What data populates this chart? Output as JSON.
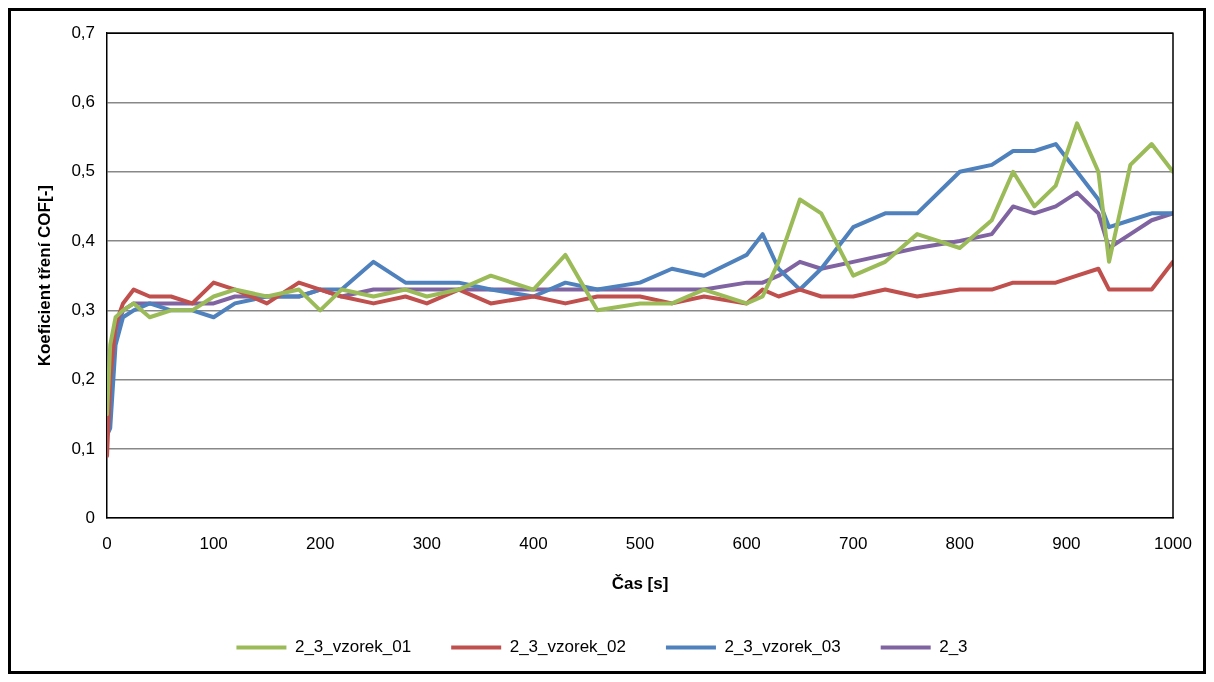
{
  "chart_data": {
    "type": "line",
    "xlabel": "Čas [s]",
    "ylabel": "Koeficient tření COF[-]",
    "x": [
      0,
      3,
      8,
      15,
      25,
      40,
      60,
      80,
      100,
      120,
      150,
      180,
      200,
      220,
      250,
      280,
      300,
      330,
      360,
      400,
      430,
      460,
      500,
      530,
      560,
      600,
      615,
      630,
      650,
      670,
      700,
      730,
      760,
      800,
      830,
      850,
      870,
      890,
      910,
      930,
      940,
      960,
      980,
      1000
    ],
    "series": [
      {
        "name": "2_3_vzorek_01",
        "color": "#9bbb59",
        "values": [
          0.15,
          0.25,
          0.29,
          0.3,
          0.31,
          0.29,
          0.3,
          0.3,
          0.32,
          0.33,
          0.32,
          0.33,
          0.3,
          0.33,
          0.32,
          0.33,
          0.32,
          0.33,
          0.35,
          0.33,
          0.38,
          0.3,
          0.31,
          0.31,
          0.33,
          0.31,
          0.32,
          0.37,
          0.46,
          0.44,
          0.35,
          0.37,
          0.41,
          0.39,
          0.43,
          0.5,
          0.45,
          0.48,
          0.57,
          0.5,
          0.37,
          0.51,
          0.54,
          0.5
        ]
      },
      {
        "name": "2_3_vzorek_02",
        "color": "#c0504d",
        "values": [
          0.09,
          0.2,
          0.28,
          0.31,
          0.33,
          0.32,
          0.32,
          0.31,
          0.34,
          0.33,
          0.31,
          0.34,
          0.33,
          0.32,
          0.31,
          0.32,
          0.31,
          0.33,
          0.31,
          0.32,
          0.31,
          0.32,
          0.32,
          0.31,
          0.32,
          0.31,
          0.33,
          0.32,
          0.33,
          0.32,
          0.32,
          0.33,
          0.32,
          0.33,
          0.33,
          0.34,
          0.34,
          0.34,
          0.35,
          0.36,
          0.33,
          0.33,
          0.33,
          0.37
        ]
      },
      {
        "name": "2_3_vzorek_03",
        "color": "#4f81bd",
        "values": [
          0.12,
          0.13,
          0.25,
          0.29,
          0.3,
          0.31,
          0.3,
          0.3,
          0.29,
          0.31,
          0.32,
          0.32,
          0.33,
          0.33,
          0.37,
          0.34,
          0.34,
          0.34,
          0.33,
          0.32,
          0.34,
          0.33,
          0.34,
          0.36,
          0.35,
          0.38,
          0.41,
          0.36,
          0.33,
          0.36,
          0.42,
          0.44,
          0.44,
          0.5,
          0.51,
          0.53,
          0.53,
          0.54,
          0.5,
          0.46,
          0.42,
          0.43,
          0.44,
          0.44
        ]
      },
      {
        "name": "2_3",
        "color": "#8064a2",
        "values": [
          0.12,
          0.2,
          0.27,
          0.3,
          0.31,
          0.31,
          0.31,
          0.31,
          0.31,
          0.32,
          0.32,
          0.32,
          0.33,
          0.32,
          0.33,
          0.33,
          0.33,
          0.33,
          0.33,
          0.33,
          0.33,
          0.33,
          0.33,
          0.33,
          0.33,
          0.34,
          0.34,
          0.35,
          0.37,
          0.36,
          0.37,
          0.38,
          0.39,
          0.4,
          0.41,
          0.45,
          0.44,
          0.45,
          0.47,
          0.44,
          0.39,
          0.41,
          0.43,
          0.44
        ]
      }
    ],
    "xlim": [
      0,
      1000
    ],
    "xticks": [
      0,
      100,
      200,
      300,
      400,
      500,
      600,
      700,
      800,
      900,
      1000
    ],
    "ylim": [
      0,
      0.7
    ],
    "yticks": [
      0,
      {
        "value": 0.1,
        "label": "0,1"
      },
      {
        "value": 0.2,
        "label": "0,2"
      },
      {
        "value": 0.3,
        "label": "0,3"
      },
      {
        "value": 0.4,
        "label": "0,4"
      },
      {
        "value": 0.5,
        "label": "0,5"
      },
      {
        "value": 0.6,
        "label": "0,6"
      },
      {
        "value": 0.7,
        "label": "0,7"
      }
    ],
    "grid": "y",
    "legend": "bottom",
    "marker": "none",
    "line_style": "solid"
  }
}
